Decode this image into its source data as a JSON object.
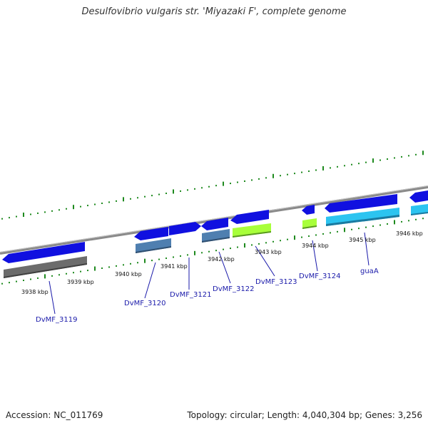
{
  "title": "Desulfovibrio vulgaris str. 'Miyazaki F', complete genome",
  "accession": "Accession: NC_011769",
  "summary": "Topology: circular; Length: 4,040,304 bp; Genes: 3,256",
  "colors": {
    "backbone": "#8a8a8a",
    "tick": "#1e8a1e",
    "gene_blue": "#1010e0",
    "gene_steel": "#4f7fb0",
    "gene_gray": "#6c6c6c",
    "gene_lime": "#a8ff3a",
    "gene_cyan": "#2cc4f0",
    "label": "#1a1aaa"
  },
  "kbp_labels": [
    "3938 kbp",
    "3939 kbp",
    "3940 kbp",
    "3941 kbp",
    "3942 kbp",
    "3943 kbp",
    "3944 kbp",
    "3945 kbp",
    "3946 kbp"
  ],
  "gene_labels": [
    "DvMF_3119",
    "DvMF_3120",
    "DvMF_3121",
    "DvMF_3122",
    "DvMF_3123",
    "DvMF_3124",
    "guaA"
  ]
}
